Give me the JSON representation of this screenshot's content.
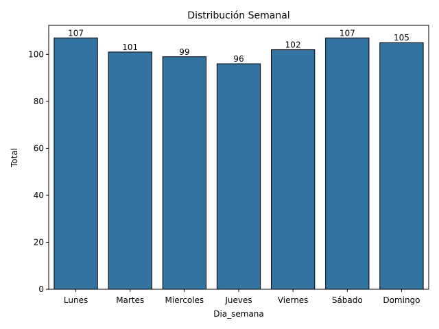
{
  "chart_data": {
    "type": "bar",
    "title": "Distribución Semanal",
    "xlabel": "Dia_semana",
    "ylabel": "Total",
    "categories": [
      "Lunes",
      "Martes",
      "Miercoles",
      "Jueves",
      "Viernes",
      "Sábado",
      "Domingo"
    ],
    "values": [
      107,
      101,
      99,
      96,
      102,
      107,
      105
    ],
    "data_labels": [
      "107",
      "101",
      "99",
      "96",
      "102",
      "107",
      "105"
    ],
    "ylim": [
      0,
      112.35
    ],
    "yticks": [
      0,
      20,
      40,
      60,
      80,
      100
    ],
    "grid": false,
    "bar_color": "#3274a1",
    "edge_color": "#000000"
  }
}
